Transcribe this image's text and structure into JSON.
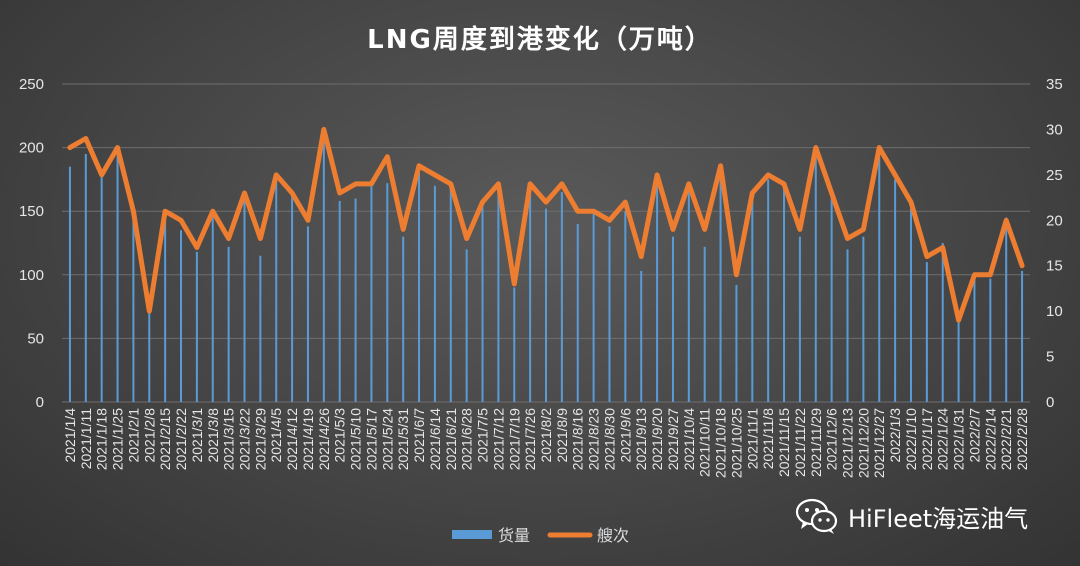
{
  "chart_data": {
    "type": "bar+line",
    "title": "LNG周度到港变化（万吨）",
    "left_axis": {
      "ylim": [
        0,
        250
      ],
      "ticks": [
        "0",
        "50",
        "100",
        "150",
        "200",
        "250"
      ]
    },
    "right_axis": {
      "ylim": [
        0,
        35
      ],
      "ticks": [
        "0",
        "5",
        "10",
        "15",
        "20",
        "25",
        "30",
        "35"
      ]
    },
    "categories": [
      "2021/1/4",
      "2021/1/11",
      "2021/1/18",
      "2021/1/25",
      "2021/2/1",
      "2021/2/8",
      "2021/2/15",
      "2021/2/22",
      "2021/3/1",
      "2021/3/8",
      "2021/3/15",
      "2021/3/22",
      "2021/3/29",
      "2021/4/5",
      "2021/4/12",
      "2021/4/19",
      "2021/4/26",
      "2021/5/3",
      "2021/5/10",
      "2021/5/17",
      "2021/5/24",
      "2021/5/31",
      "2021/6/7",
      "2021/6/14",
      "2021/6/21",
      "2021/6/28",
      "2021/7/5",
      "2021/7/12",
      "2021/7/19",
      "2021/7/26",
      "2021/8/2",
      "2021/8/9",
      "2021/8/16",
      "2021/8/23",
      "2021/8/30",
      "2021/9/6",
      "2021/9/13",
      "2021/9/20",
      "2021/9/27",
      "2021/10/4",
      "2021/10/11",
      "2021/10/18",
      "2021/10/25",
      "2021/11/1",
      "2021/11/8",
      "2021/11/15",
      "2021/11/22",
      "2021/11/29",
      "2021/12/6",
      "2021/12/13",
      "2021/12/20",
      "2021/12/27",
      "2022/1/3",
      "2022/1/10",
      "2022/1/17",
      "2022/1/24",
      "2022/1/31",
      "2022/2/7",
      "2022/2/14",
      "2022/2/21",
      "2022/2/28"
    ],
    "series": [
      {
        "name": "货量",
        "axis": "left",
        "type": "bar",
        "color": "#5b9bd5",
        "values": [
          185,
          195,
          180,
          200,
          152,
          70,
          148,
          135,
          118,
          148,
          122,
          158,
          115,
          178,
          165,
          138,
          210,
          158,
          160,
          170,
          172,
          130,
          180,
          170,
          170,
          120,
          153,
          170,
          90,
          165,
          152,
          165,
          140,
          148,
          138,
          150,
          103,
          175,
          130,
          168,
          122,
          182,
          92,
          160,
          175,
          168,
          130,
          195,
          160,
          120,
          130,
          193,
          175,
          152,
          110,
          125,
          65,
          100,
          97,
          145,
          103
        ]
      },
      {
        "name": "艘次",
        "axis": "right",
        "type": "line",
        "color": "#ed7d31",
        "values": [
          28,
          29,
          25,
          28,
          21,
          10,
          21,
          20,
          17,
          21,
          18,
          23,
          18,
          25,
          23,
          20,
          30,
          23,
          24,
          24,
          27,
          19,
          26,
          25,
          24,
          18,
          22,
          24,
          13,
          24,
          22,
          24,
          21,
          21,
          20,
          22,
          16,
          25,
          19,
          24,
          19,
          26,
          14,
          23,
          25,
          24,
          19,
          28,
          23,
          18,
          19,
          28,
          25,
          22,
          16,
          17,
          9,
          14,
          14,
          20,
          15
        ]
      }
    ],
    "legend_position": "bottom"
  },
  "watermark": {
    "text": "HiFleet海运油气"
  }
}
